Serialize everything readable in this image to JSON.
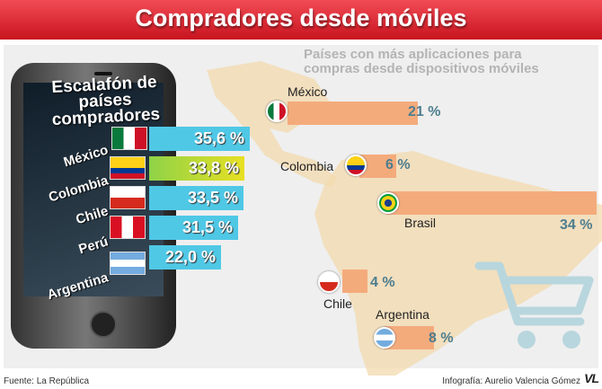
{
  "header": {
    "title": "Compradores desde móviles"
  },
  "phone": {
    "heading": "Escalafón de países compradores"
  },
  "right_panel": {
    "title": "Países con más aplicaciones para compras desde dispositivos móviles"
  },
  "footer": {
    "source": "Fuente: La República",
    "credit": "Infografía: Aurelio Valencia Gómez",
    "logo": "VL"
  },
  "colors": {
    "header_red": "#d9202a",
    "bar_cyan": "#4fc8e6",
    "bar_yellow": "#e8e022",
    "bar_orange": "#f4ab7c",
    "pct_text": "#4d7d8e"
  },
  "chart_data": [
    {
      "type": "bar",
      "categories": [
        "México",
        "Colombia",
        "Chile",
        "Perú",
        "Argentina"
      ],
      "values": [
        35.6,
        33.8,
        33.5,
        31.5,
        22.0
      ],
      "value_labels": [
        "35,6 %",
        "33,8 %",
        "33,5 %",
        "31,5 %",
        "22,0 %"
      ],
      "title": "Escalafón de países compradores",
      "unit": "%"
    },
    {
      "type": "bar",
      "categories": [
        "México",
        "Colombia",
        "Brasil",
        "Chile",
        "Argentina"
      ],
      "values": [
        21,
        6,
        34,
        4,
        8
      ],
      "value_labels": [
        "21 %",
        "6 %",
        "34 %",
        "4 %",
        "8 %"
      ],
      "title": "Países con más aplicaciones para compras desde dispositivos móviles",
      "unit": "%"
    }
  ]
}
